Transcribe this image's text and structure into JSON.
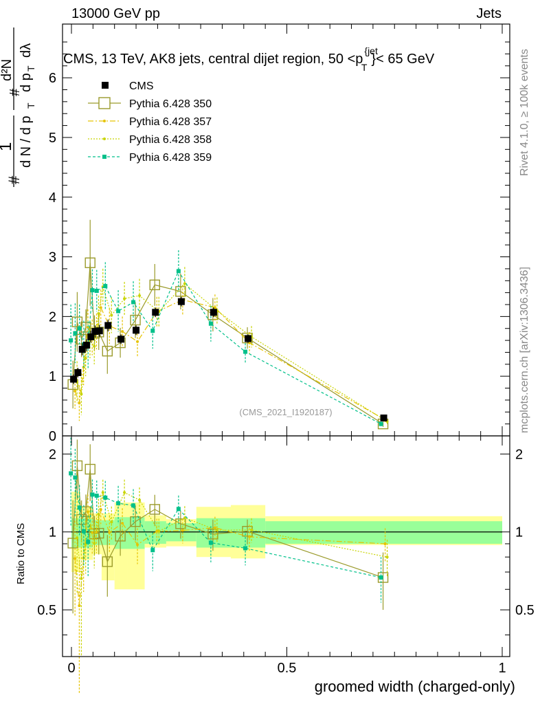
{
  "header": {
    "left": "13000 GeV pp",
    "right": "Jets",
    "title": "CMS, 13 TeV, AK8 jets, central dijet region, 50 <p",
    "title_sup": "{jet",
    "title_sub": "T",
    "title_end": "}< 65 GeV"
  },
  "side": {
    "rivet": "Rivet 4.1.0, ≥ 100k events",
    "mcplots": "mcplots.cern.ch [arXiv:1306.3436]"
  },
  "watermark": "(CMS_2021_I1920187)",
  "axes": {
    "xlabel": "groomed width (charged-only)",
    "ratio_ylabel": "Ratio to CMS",
    "main_ylabel": "1/N dN/dp_T d²N/dp_T dλ"
  },
  "colors": {
    "cms": "#000000",
    "p350": "#9a9a2a",
    "p357": "#e6c300",
    "p358": "#c8d400",
    "p359": "#00c08a",
    "band_inner": "#99ff99",
    "band_outer": "#ffff99"
  },
  "chart_data": {
    "type": "scatter",
    "xlim": [
      0,
      1
    ],
    "ylim_main": [
      0,
      6.9
    ],
    "ylim_ratio": [
      0.33,
      2.35
    ],
    "ratio_scale": "log",
    "x_ticks": [
      0,
      0.5,
      1
    ],
    "x_tick_labels": [
      "0",
      "0.5",
      "1"
    ],
    "y_ticks_main": [
      0,
      1,
      2,
      3,
      4,
      5,
      6
    ],
    "y_tick_labels_main": [
      "0",
      "1",
      "2",
      "3",
      "4",
      "5",
      "6"
    ],
    "y_ticks_ratio": [
      0.5,
      1,
      2
    ],
    "y_tick_labels_ratio": [
      "0.5",
      "1",
      "2"
    ],
    "bins": [
      [
        0,
        0.01
      ],
      [
        0.01,
        0.02
      ],
      [
        0.02,
        0.03
      ],
      [
        0.03,
        0.04
      ],
      [
        0.04,
        0.05
      ],
      [
        0.05,
        0.06
      ],
      [
        0.06,
        0.07
      ],
      [
        0.07,
        0.1
      ],
      [
        0.1,
        0.13
      ],
      [
        0.13,
        0.17
      ],
      [
        0.17,
        0.22
      ],
      [
        0.22,
        0.29
      ],
      [
        0.29,
        0.37
      ],
      [
        0.37,
        0.45
      ],
      [
        0.45,
        1.0
      ]
    ],
    "x": [
      0.005,
      0.015,
      0.025,
      0.035,
      0.045,
      0.055,
      0.065,
      0.085,
      0.115,
      0.15,
      0.195,
      0.255,
      0.33,
      0.41,
      0.725
    ],
    "cms": {
      "name": "CMS",
      "values": [
        0.95,
        1.06,
        1.45,
        1.52,
        1.66,
        1.75,
        1.76,
        1.85,
        1.62,
        1.77,
        2.07,
        2.25,
        2.07,
        1.63,
        0.3
      ],
      "errors": [
        0.08,
        0.08,
        0.1,
        0.1,
        0.1,
        0.1,
        0.1,
        0.1,
        0.08,
        0.08,
        0.08,
        0.08,
        0.08,
        0.07,
        0.03
      ]
    },
    "series": [
      {
        "name": "Pythia 6.428 350",
        "values": [
          0.86,
          1.91,
          1.62,
          1.82,
          2.9,
          1.72,
          1.74,
          1.42,
          1.56,
          1.94,
          2.53,
          2.42,
          2.03,
          1.64,
          0.2
        ],
        "errors": [
          0.4,
          0.5,
          0.3,
          0.3,
          0.72,
          0.3,
          0.3,
          0.38,
          0.25,
          0.3,
          0.35,
          0.3,
          0.28,
          0.18,
          0.05
        ]
      },
      {
        "name": "Pythia 6.428 357",
        "values": [
          0.75,
          0.55,
          1.15,
          1.82,
          1.65,
          1.75,
          2.15,
          1.84,
          1.75,
          1.58,
          2.08,
          2.28,
          2.15,
          1.56,
          0.27
        ],
        "errors": [
          0.3,
          0.3,
          0.3,
          0.3,
          0.3,
          0.3,
          0.3,
          0.3,
          0.25,
          0.25,
          0.25,
          0.25,
          0.22,
          0.18,
          0.04
        ]
      },
      {
        "name": "Pythia 6.428 358",
        "values": [
          0.9,
          0.7,
          1.3,
          1.6,
          1.5,
          2.05,
          2.5,
          2.02,
          2.3,
          2.35,
          2.08,
          2.55,
          2.1,
          1.66,
          0.24
        ],
        "errors": [
          0.35,
          0.35,
          0.3,
          0.3,
          0.3,
          0.3,
          0.3,
          0.3,
          0.28,
          0.28,
          0.25,
          0.28,
          0.22,
          0.18,
          0.04
        ]
      },
      {
        "name": "Pythia 6.428 359",
        "values": [
          1.6,
          1.72,
          1.8,
          1.53,
          1.52,
          2.44,
          2.43,
          2.51,
          2.09,
          2.24,
          1.76,
          2.76,
          1.88,
          1.41,
          0.2
        ],
        "errors": [
          0.6,
          0.5,
          0.4,
          0.4,
          0.4,
          0.35,
          0.35,
          0.4,
          0.35,
          0.35,
          0.3,
          0.35,
          0.3,
          0.2,
          0.04
        ]
      }
    ],
    "ratio_band": {
      "inner_hi": [
        1.13,
        1.13,
        1.13,
        1.13,
        1.13,
        1.11,
        1.11,
        1.11,
        1.14,
        1.14,
        1.1,
        1.08,
        1.13,
        1.13,
        1.1
      ],
      "inner_lo": [
        0.87,
        0.87,
        0.87,
        0.87,
        0.87,
        0.89,
        0.89,
        0.89,
        0.86,
        0.86,
        0.9,
        0.92,
        0.87,
        0.87,
        0.9
      ],
      "outer_hi": [
        1.43,
        1.43,
        1.25,
        1.25,
        1.25,
        1.18,
        1.18,
        1.18,
        1.3,
        1.3,
        1.16,
        1.12,
        1.25,
        1.27,
        1.15
      ],
      "outer_lo": [
        0.7,
        0.7,
        0.78,
        0.78,
        0.78,
        0.82,
        0.82,
        0.65,
        0.6,
        0.6,
        0.87,
        0.88,
        0.8,
        0.79,
        0.89
      ]
    }
  }
}
